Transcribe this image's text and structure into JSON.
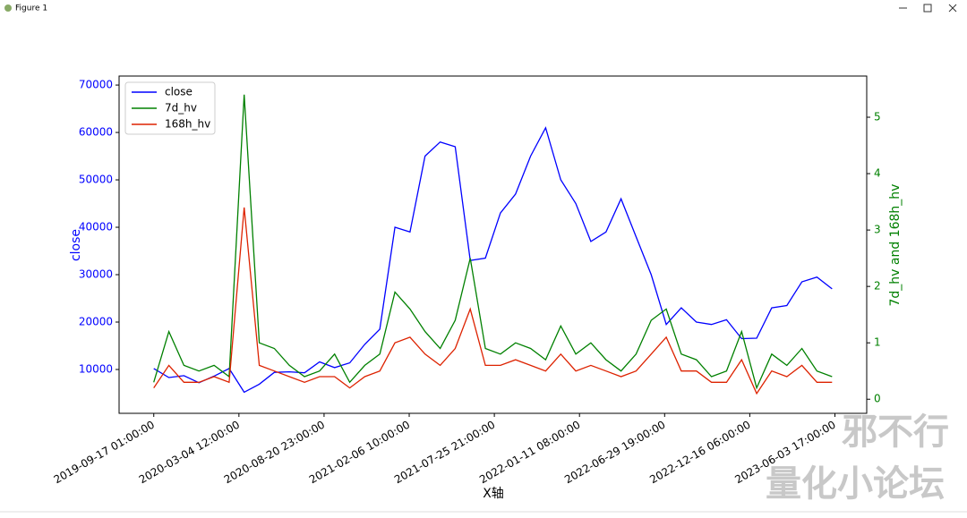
{
  "window": {
    "title": "Figure 1"
  },
  "watermark": [
    "邪不行",
    "量化小论坛"
  ],
  "chart_data": {
    "type": "line",
    "xlabel": "X轴",
    "ylabel": "close",
    "y2label": "7d_hv and 168h_hv",
    "legend": "upper left",
    "x": [
      "2019-09-17",
      "2019-10-17",
      "2019-11-16",
      "2019-12-16",
      "2020-01-15",
      "2020-02-14",
      "2020-03-15",
      "2020-04-14",
      "2020-05-14",
      "2020-06-13",
      "2020-07-13",
      "2020-08-12",
      "2020-09-11",
      "2020-10-11",
      "2020-11-10",
      "2020-12-10",
      "2021-01-09",
      "2021-02-08",
      "2021-03-10",
      "2021-04-09",
      "2021-05-09",
      "2021-06-08",
      "2021-07-08",
      "2021-08-07",
      "2021-09-06",
      "2021-10-06",
      "2021-11-05",
      "2021-12-05",
      "2022-01-04",
      "2022-02-03",
      "2022-03-05",
      "2022-04-04",
      "2022-05-04",
      "2022-06-03",
      "2022-07-03",
      "2022-08-02",
      "2022-09-01",
      "2022-10-01",
      "2022-10-31",
      "2022-11-30",
      "2022-12-30",
      "2023-01-29",
      "2023-02-28",
      "2023-03-30",
      "2023-04-29",
      "2023-05-29"
    ],
    "series": [
      {
        "name": "close",
        "color": "#0000ff",
        "axis": "y",
        "values": [
          10200,
          8300,
          8700,
          7200,
          8600,
          10200,
          5200,
          6900,
          9400,
          9500,
          9300,
          11600,
          10400,
          11400,
          15300,
          18500,
          40000,
          39000,
          55000,
          58000,
          57000,
          33000,
          33500,
          43000,
          47000,
          55000,
          61000,
          50000,
          45000,
          37000,
          39000,
          46000,
          38000,
          30000,
          19500,
          23000,
          20000,
          19500,
          20500,
          16500,
          16600,
          23000,
          23500,
          28500,
          29500,
          27000
        ]
      },
      {
        "name": "7d_hv",
        "color": "#008000",
        "axis": "y2",
        "values": [
          0.3,
          1.2,
          0.6,
          0.5,
          0.6,
          0.4,
          5.4,
          1.0,
          0.9,
          0.6,
          0.4,
          0.5,
          0.8,
          0.3,
          0.6,
          0.8,
          1.9,
          1.6,
          1.2,
          0.9,
          1.4,
          2.5,
          0.9,
          0.8,
          1.0,
          0.9,
          0.7,
          1.3,
          0.8,
          1.0,
          0.7,
          0.5,
          0.8,
          1.4,
          1.6,
          0.8,
          0.7,
          0.4,
          0.5,
          1.2,
          0.2,
          0.8,
          0.6,
          0.9,
          0.5,
          0.4
        ]
      },
      {
        "name": "168h_hv",
        "color": "#dd2200",
        "axis": "y2",
        "values": [
          0.2,
          0.6,
          0.3,
          0.3,
          0.4,
          0.3,
          3.4,
          0.6,
          0.5,
          0.4,
          0.3,
          0.4,
          0.4,
          0.2,
          0.4,
          0.5,
          1.0,
          1.1,
          0.8,
          0.6,
          0.9,
          1.6,
          0.6,
          0.6,
          0.7,
          0.6,
          0.5,
          0.8,
          0.5,
          0.6,
          0.5,
          0.4,
          0.5,
          0.8,
          1.1,
          0.5,
          0.5,
          0.3,
          0.3,
          0.7,
          0.1,
          0.5,
          0.4,
          0.6,
          0.3,
          0.3
        ]
      }
    ],
    "xlim": [
      "2019-07-10 00:00:00",
      "2023-08-06 00:00:00"
    ],
    "xticks": [
      "2019-09-17 01:00:00",
      "2020-03-04 12:00:00",
      "2020-08-20 23:00:00",
      "2021-02-06 10:00:00",
      "2021-07-25 21:00:00",
      "2022-01-11 08:00:00",
      "2022-06-29 19:00:00",
      "2022-12-16 06:00:00",
      "2023-06-03 17:00:00"
    ],
    "ylim": [
      750,
      71900
    ],
    "yticks": [
      10000,
      20000,
      30000,
      40000,
      50000,
      60000,
      70000
    ],
    "y2lim": [
      -0.25,
      5.73
    ],
    "y2ticks": [
      0,
      1,
      2,
      3,
      4,
      5
    ]
  }
}
